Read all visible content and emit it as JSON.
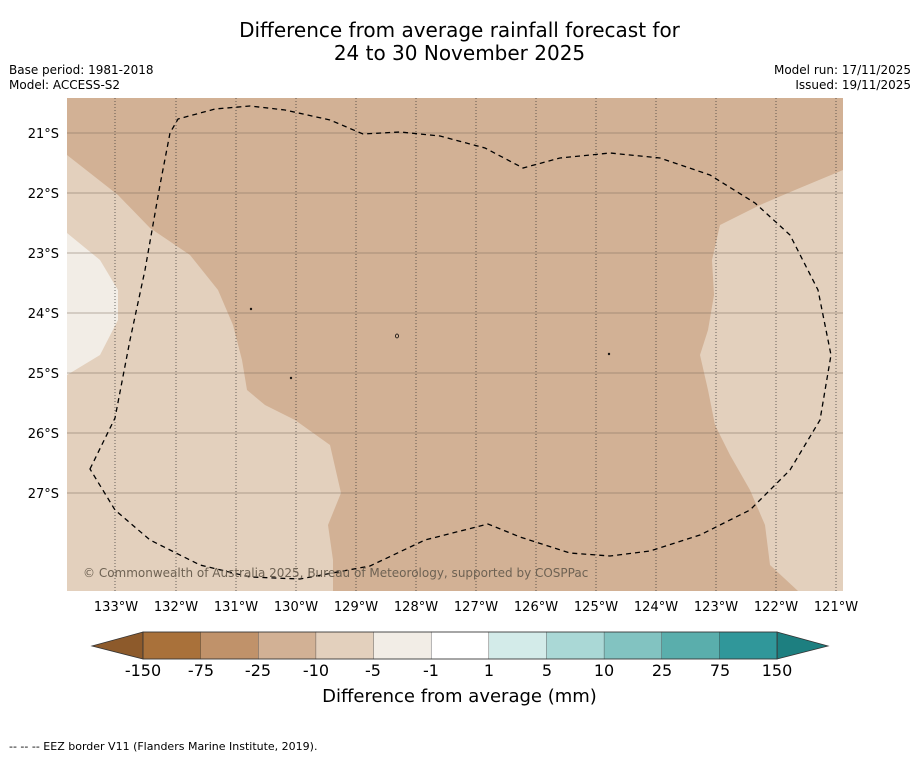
{
  "title": {
    "line1": "Difference from average rainfall forecast for",
    "line2": "24 to 30 November 2025"
  },
  "meta": {
    "base_period": "Base period: 1981-2018",
    "model": "Model: ACCESS-S2",
    "model_run": "Model run: 17/11/2025",
    "issued": "Issued: 19/11/2025"
  },
  "map": {
    "latitude_labels": [
      "21°S",
      "22°S",
      "23°S",
      "24°S",
      "25°S",
      "26°S",
      "27°S"
    ],
    "longitude_labels": [
      "133°W",
      "132°W",
      "131°W",
      "130°W",
      "129°W",
      "128°W",
      "127°W",
      "126°W",
      "125°W",
      "124°W",
      "123°W",
      "122°W",
      "121°W"
    ],
    "copyright": "© Commonwealth of Australia 2025, Bureau of Meteorology, supported by COSPPac",
    "colors": {
      "band_-25_-10": "#d2b195",
      "band_-10_-5": "#e3d0bd",
      "band_-5_-1": "#f2ede6"
    }
  },
  "colorbar": {
    "tick_labels": [
      "-150",
      "-75",
      "-25",
      "-10",
      "-5",
      "-1",
      "1",
      "5",
      "10",
      "25",
      "75",
      "150"
    ],
    "colors": [
      "#a9713a",
      "#c0926a",
      "#d2b195",
      "#e3d0bd",
      "#f2ede6",
      "#ffffff",
      "#d3ebe9",
      "#aad8d6",
      "#82c3c1",
      "#5aaeac",
      "#30979a"
    ],
    "low_extend_color": "#8d5a2b",
    "high_extend_color": "#1d7f80",
    "title": "Difference from average (mm)"
  },
  "footer": {
    "legend": "--  --  -- EEZ border V11 (Flanders Marine Institute, 2019)."
  }
}
